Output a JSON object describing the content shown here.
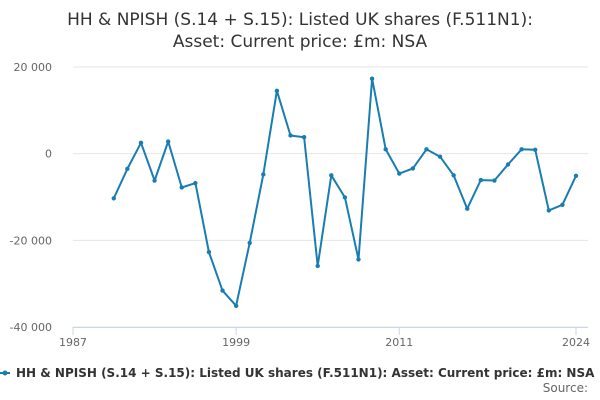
{
  "chart_data": {
    "type": "line",
    "title_line1": "HH & NPISH (S.14 + S.15): Listed UK shares (F.511N1):",
    "title_line2": "Asset: Current price: £m: NSA",
    "xlabel": "",
    "ylabel": "",
    "xlim": [
      1987,
      2024
    ],
    "ylim": [
      -40000,
      20000
    ],
    "x_ticks": [
      1987,
      1999,
      2011,
      2024
    ],
    "x_tick_labels": [
      "1987",
      "1999",
      "2011",
      "2024"
    ],
    "y_ticks": [
      20000,
      0,
      -20000,
      -40000
    ],
    "y_tick_labels": [
      "20 000",
      "0",
      "-20 000",
      "-40 000"
    ],
    "grid": "horizontal",
    "legend_placement": "bottom",
    "line_color": "#1a7db1",
    "series": [
      {
        "name": "HH & NPISH (S.14 + S.15): Listed UK shares (F.511N1): Asset: Current price: £m: NSA",
        "x": [
          1990,
          1991,
          1992,
          1993,
          1994,
          1995,
          1996,
          1997,
          1998,
          1999,
          2000,
          2001,
          2002,
          2003,
          2004,
          2005,
          2006,
          2007,
          2008,
          2009,
          2010,
          2011,
          2012,
          2013,
          2014,
          2015,
          2016,
          2017,
          2018,
          2019,
          2020,
          2021,
          2022,
          2023,
          2024
        ],
        "values": [
          -10300,
          -3500,
          2500,
          -6200,
          2800,
          -7800,
          -6800,
          -22700,
          -31600,
          -35100,
          -20600,
          -4800,
          14500,
          4200,
          3800,
          -25900,
          -5000,
          -10100,
          -24400,
          17300,
          1000,
          -4600,
          -3400,
          1000,
          -700,
          -5000,
          -12700,
          -6100,
          -6200,
          -2500,
          1000,
          900,
          -13100,
          -11800,
          -5100
        ]
      }
    ],
    "source_label": "Source:"
  }
}
